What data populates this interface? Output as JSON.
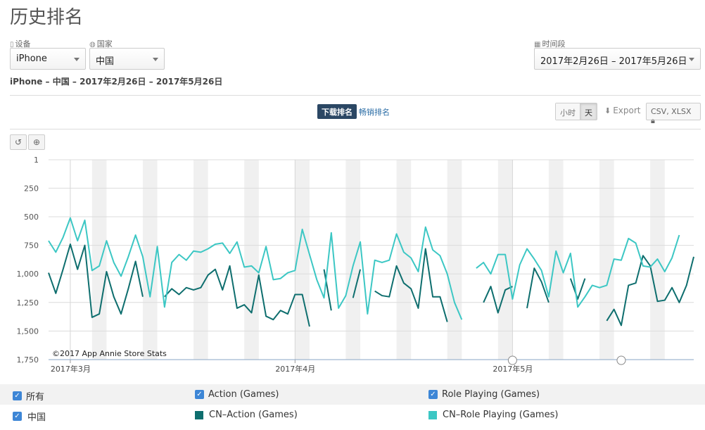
{
  "page_title": "历史排名",
  "filters": {
    "device": {
      "label": "设备",
      "value": "iPhone"
    },
    "country": {
      "label": "国家",
      "value": "中国"
    },
    "period": {
      "label": "时间段",
      "value": "2017年2月26日 – 2017年5月26日"
    }
  },
  "summary": "iPhone – 中国 – 2017年2月26日 – 2017年5月26日",
  "rank_tabs": {
    "download": "下载排名",
    "grossing": "畅销排名"
  },
  "granularity": {
    "hour": "小时",
    "day": "天",
    "selected": "天"
  },
  "export": {
    "label": "Export",
    "formats": "CSV, XLSX"
  },
  "tools": {
    "reset": "↺",
    "zoom": "⊕"
  },
  "legend": {
    "all": "所有",
    "category_1": "Action (Games)",
    "category_2": "Role Playing (Games)",
    "country": "中国",
    "series_1": "CN–Action (Games)",
    "series_2": "CN–Role Playing (Games)"
  },
  "colors": {
    "action": "#0e6e6e",
    "role_playing": "#3cc7c4",
    "weekend_band": "#f0f0f0",
    "checkbox": "#3d86d6"
  },
  "chart_data": {
    "type": "line",
    "credit": "©2017 App Annie Store Stats",
    "x_start": "2017-02-26",
    "x_end": "2017-05-26",
    "x_tick_labels": [
      {
        "date": "2017-03-01",
        "label": "2017年3月"
      },
      {
        "date": "2017-04-01",
        "label": "2017年4月"
      },
      {
        "date": "2017-05-01",
        "label": "2017年5月"
      }
    ],
    "y_ticks": [
      1,
      250,
      500,
      750,
      1000,
      1250,
      1500,
      1750
    ],
    "y_tick_labels": [
      "1",
      "250",
      "500",
      "750",
      "1,000",
      "1,250",
      "1,500",
      "1,750"
    ],
    "ylim": [
      1,
      1750
    ],
    "y_reversed": true,
    "grid": true,
    "weekend_bands": true,
    "event_marker_dates": [
      "2017-05-01",
      "2017-05-16"
    ],
    "series": [
      {
        "name": "CN–Action (Games)",
        "color": "#0e6e6e",
        "points": [
          [
            "2017-02-26",
            990
          ],
          [
            "2017-02-27",
            1170
          ],
          [
            "2017-02-28",
            960
          ],
          [
            "2017-03-01",
            740
          ],
          [
            "2017-03-02",
            960
          ],
          [
            "2017-03-03",
            750
          ],
          [
            "2017-03-04",
            1380
          ],
          [
            "2017-03-05",
            1350
          ],
          [
            "2017-03-06",
            980
          ],
          [
            "2017-03-07",
            1200
          ],
          [
            "2017-03-08",
            1350
          ],
          [
            "2017-03-09",
            1130
          ],
          [
            "2017-03-10",
            890
          ],
          [
            "2017-03-11",
            1200
          ],
          [
            "2017-03-14",
            1200
          ],
          [
            "2017-03-15",
            1130
          ],
          [
            "2017-03-16",
            1180
          ],
          [
            "2017-03-17",
            1120
          ],
          [
            "2017-03-18",
            1140
          ],
          [
            "2017-03-19",
            1120
          ],
          [
            "2017-03-20",
            1010
          ],
          [
            "2017-03-21",
            960
          ],
          [
            "2017-03-22",
            1140
          ],
          [
            "2017-03-23",
            930
          ],
          [
            "2017-03-24",
            1300
          ],
          [
            "2017-03-25",
            1270
          ],
          [
            "2017-03-26",
            1340
          ],
          [
            "2017-03-27",
            1010
          ],
          [
            "2017-03-28",
            1370
          ],
          [
            "2017-03-29",
            1400
          ],
          [
            "2017-03-30",
            1320
          ],
          [
            "2017-03-31",
            1350
          ],
          [
            "2017-04-01",
            1180
          ],
          [
            "2017-04-02",
            1180
          ],
          [
            "2017-04-03",
            1460
          ],
          [
            "2017-04-05",
            960
          ],
          [
            "2017-04-06",
            1320
          ],
          [
            "2017-04-09",
            1210
          ],
          [
            "2017-04-10",
            960
          ],
          [
            "2017-04-12",
            1150
          ],
          [
            "2017-04-13",
            1190
          ],
          [
            "2017-04-14",
            1200
          ],
          [
            "2017-04-15",
            930
          ],
          [
            "2017-04-16",
            1080
          ],
          [
            "2017-04-17",
            1130
          ],
          [
            "2017-04-18",
            1300
          ],
          [
            "2017-04-19",
            780
          ],
          [
            "2017-04-20",
            1200
          ],
          [
            "2017-04-21",
            1200
          ],
          [
            "2017-04-22",
            1420
          ],
          [
            "2017-04-27",
            1250
          ],
          [
            "2017-04-28",
            1110
          ],
          [
            "2017-04-29",
            1340
          ],
          [
            "2017-04-30",
            1140
          ],
          [
            "2017-05-01",
            1110
          ],
          [
            "2017-05-03",
            1300
          ],
          [
            "2017-05-04",
            950
          ],
          [
            "2017-05-05",
            1070
          ],
          [
            "2017-05-06",
            1250
          ],
          [
            "2017-05-09",
            1040
          ],
          [
            "2017-05-10",
            1220
          ],
          [
            "2017-05-11",
            1040
          ],
          [
            "2017-05-14",
            1410
          ],
          [
            "2017-05-15",
            1310
          ],
          [
            "2017-05-16",
            1450
          ],
          [
            "2017-05-17",
            1100
          ],
          [
            "2017-05-18",
            1080
          ],
          [
            "2017-05-19",
            840
          ],
          [
            "2017-05-20",
            930
          ],
          [
            "2017-05-21",
            1240
          ],
          [
            "2017-05-22",
            1230
          ],
          [
            "2017-05-23",
            1120
          ],
          [
            "2017-05-24",
            1250
          ],
          [
            "2017-05-25",
            1100
          ],
          [
            "2017-05-26",
            850
          ]
        ]
      },
      {
        "name": "CN–Role Playing (Games)",
        "color": "#3cc7c4",
        "points": [
          [
            "2017-02-26",
            710
          ],
          [
            "2017-02-27",
            810
          ],
          [
            "2017-02-28",
            680
          ],
          [
            "2017-03-01",
            510
          ],
          [
            "2017-03-02",
            710
          ],
          [
            "2017-03-03",
            530
          ],
          [
            "2017-03-04",
            970
          ],
          [
            "2017-03-05",
            930
          ],
          [
            "2017-03-06",
            710
          ],
          [
            "2017-03-07",
            900
          ],
          [
            "2017-03-08",
            1020
          ],
          [
            "2017-03-09",
            850
          ],
          [
            "2017-03-10",
            660
          ],
          [
            "2017-03-11",
            850
          ],
          [
            "2017-03-12",
            1200
          ],
          [
            "2017-03-13",
            760
          ],
          [
            "2017-03-14",
            1290
          ],
          [
            "2017-03-15",
            900
          ],
          [
            "2017-03-16",
            830
          ],
          [
            "2017-03-17",
            880
          ],
          [
            "2017-03-18",
            800
          ],
          [
            "2017-03-19",
            810
          ],
          [
            "2017-03-20",
            780
          ],
          [
            "2017-03-21",
            740
          ],
          [
            "2017-03-22",
            730
          ],
          [
            "2017-03-23",
            820
          ],
          [
            "2017-03-24",
            720
          ],
          [
            "2017-03-25",
            940
          ],
          [
            "2017-03-26",
            930
          ],
          [
            "2017-03-27",
            990
          ],
          [
            "2017-03-28",
            760
          ],
          [
            "2017-03-29",
            1050
          ],
          [
            "2017-03-30",
            1040
          ],
          [
            "2017-03-31",
            990
          ],
          [
            "2017-04-01",
            970
          ],
          [
            "2017-04-02",
            610
          ],
          [
            "2017-04-03",
            830
          ],
          [
            "2017-04-04",
            1050
          ],
          [
            "2017-04-05",
            1210
          ],
          [
            "2017-04-06",
            640
          ],
          [
            "2017-04-07",
            1300
          ],
          [
            "2017-04-08",
            1190
          ],
          [
            "2017-04-09",
            930
          ],
          [
            "2017-04-10",
            720
          ],
          [
            "2017-04-11",
            1350
          ],
          [
            "2017-04-12",
            880
          ],
          [
            "2017-04-13",
            900
          ],
          [
            "2017-04-14",
            880
          ],
          [
            "2017-04-15",
            650
          ],
          [
            "2017-04-16",
            810
          ],
          [
            "2017-04-17",
            860
          ],
          [
            "2017-04-18",
            980
          ],
          [
            "2017-04-19",
            590
          ],
          [
            "2017-04-20",
            790
          ],
          [
            "2017-04-21",
            840
          ],
          [
            "2017-04-22",
            1000
          ],
          [
            "2017-04-23",
            1250
          ],
          [
            "2017-04-24",
            1400
          ],
          [
            "2017-04-26",
            950
          ],
          [
            "2017-04-27",
            900
          ],
          [
            "2017-04-28",
            1000
          ],
          [
            "2017-04-29",
            830
          ],
          [
            "2017-04-30",
            830
          ],
          [
            "2017-05-01",
            1220
          ],
          [
            "2017-05-02",
            920
          ],
          [
            "2017-05-03",
            780
          ],
          [
            "2017-05-04",
            870
          ],
          [
            "2017-05-05",
            970
          ],
          [
            "2017-05-06",
            1200
          ],
          [
            "2017-05-07",
            800
          ],
          [
            "2017-05-08",
            990
          ],
          [
            "2017-05-09",
            820
          ],
          [
            "2017-05-10",
            1290
          ],
          [
            "2017-05-11",
            1200
          ],
          [
            "2017-05-12",
            1100
          ],
          [
            "2017-05-13",
            1120
          ],
          [
            "2017-05-14",
            1100
          ],
          [
            "2017-05-15",
            870
          ],
          [
            "2017-05-16",
            880
          ],
          [
            "2017-05-17",
            690
          ],
          [
            "2017-05-18",
            730
          ],
          [
            "2017-05-19",
            930
          ],
          [
            "2017-05-20",
            940
          ],
          [
            "2017-05-21",
            870
          ],
          [
            "2017-05-22",
            980
          ],
          [
            "2017-05-23",
            860
          ],
          [
            "2017-05-24",
            660
          ]
        ]
      }
    ]
  }
}
